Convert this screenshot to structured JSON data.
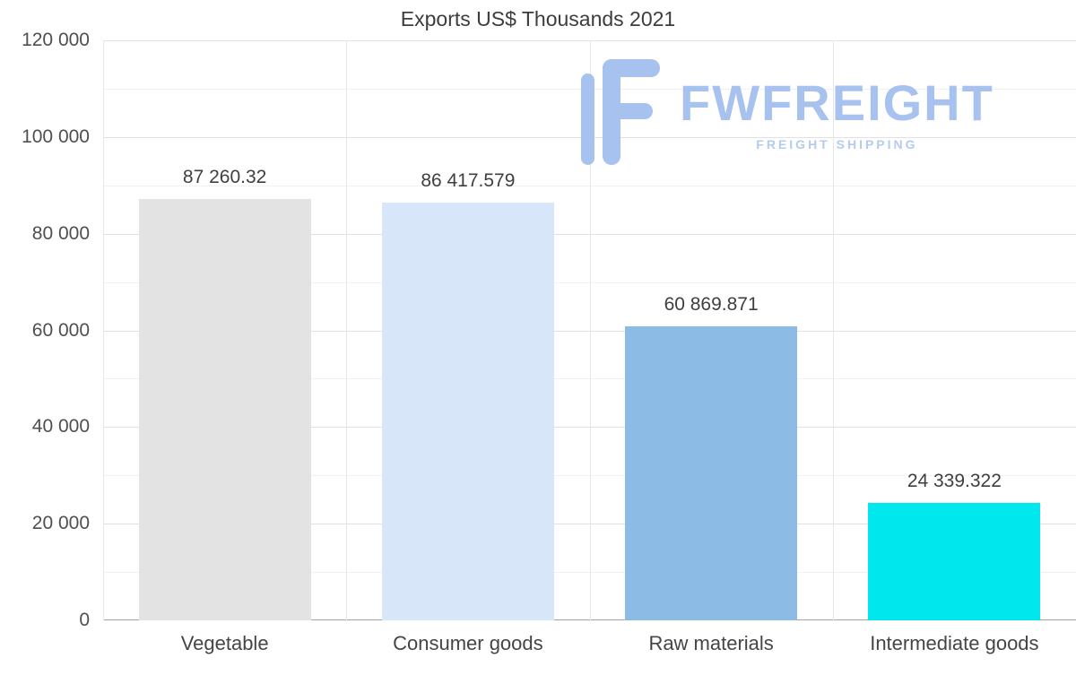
{
  "chart_data": {
    "type": "bar",
    "title": "Exports US$ Thousands 2021",
    "categories": [
      "Vegetable",
      "Consumer goods",
      "Raw materials",
      "Intermediate goods"
    ],
    "values": [
      87260.32,
      86417.579,
      60869.871,
      24339.322
    ],
    "value_labels": [
      "87 260.32",
      "86 417.579",
      "60 869.871",
      "24 339.322"
    ],
    "bar_colors": [
      "#e3e3e3",
      "#d7e7f9",
      "#8cbce6",
      "#00e8ee"
    ],
    "xlabel": "",
    "ylabel": "",
    "ylim": [
      0,
      120000
    ],
    "y_major_step": 20000,
    "y_minor_step": 10000,
    "y_tick_labels": [
      "0",
      "20 000",
      "40 000",
      "60 000",
      "80 000",
      "100 000",
      "120 000"
    ],
    "grid": "on",
    "legend": "none"
  },
  "watermark": {
    "brand": "FWFREIGHT",
    "tagline": "FREIGHT SHIPPING",
    "color": "#a7c2ef"
  }
}
